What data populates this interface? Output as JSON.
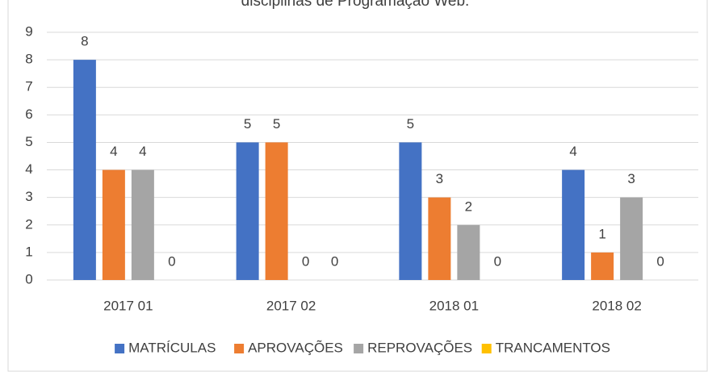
{
  "chart_data": {
    "type": "bar",
    "title": "disciplinas  de Programação Web.",
    "categories": [
      "2017 01",
      "2017 02",
      "2018 01",
      "2018 02"
    ],
    "series": [
      {
        "name": "MATRÍCULAS",
        "color": "#4472c4",
        "values": [
          8,
          5,
          5,
          4
        ]
      },
      {
        "name": "APROVAÇÕES",
        "color": "#ed7d31",
        "values": [
          4,
          5,
          3,
          1
        ]
      },
      {
        "name": "REPROVAÇÕES",
        "color": "#a5a5a5",
        "values": [
          4,
          0,
          2,
          3
        ]
      },
      {
        "name": "TRANCAMENTOS",
        "color": "#ffc000",
        "values": [
          0,
          0,
          0,
          0
        ]
      }
    ],
    "ylim": [
      0,
      9
    ],
    "yticks": [
      0,
      1,
      2,
      3,
      4,
      5,
      6,
      7,
      8,
      9
    ],
    "grid": true,
    "legend": "bottom"
  }
}
